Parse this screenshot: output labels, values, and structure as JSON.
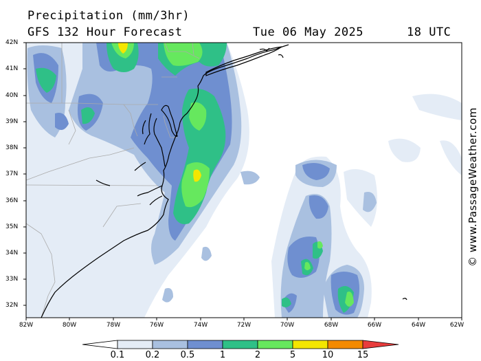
{
  "header": {
    "title": "Precipitation (mm/3hr)",
    "model": "GFS 132 Hour Forecast",
    "date": "Tue 06 May 2025",
    "time": "18 UTC"
  },
  "credit": "© www.PassageWeather.com",
  "map": {
    "lat_labels": [
      "42N",
      "41N",
      "40N",
      "39N",
      "38N",
      "37N",
      "36N",
      "35N",
      "34N",
      "33N",
      "32N"
    ],
    "lon_labels": [
      "82W",
      "80W",
      "78W",
      "76W",
      "74W",
      "72W",
      "70W",
      "68W",
      "66W",
      "64W",
      "62W"
    ],
    "lat_range": [
      31.6,
      42.0
    ],
    "lon_range": [
      -82.0,
      -62.0
    ],
    "ocean_color": "#ffffff",
    "border_color": "#aaaaaa",
    "coast_color": "#000000"
  },
  "legend": {
    "labels": [
      "0.1",
      "0.2",
      "0.5",
      "1",
      "2",
      "5",
      "10",
      "15"
    ],
    "colors": [
      "#ffffff",
      "#e4ecf6",
      "#a9c0e0",
      "#6f8fd0",
      "#2fc087",
      "#66e85e",
      "#f4e600",
      "#f48a00",
      "#e83c3c"
    ]
  }
}
